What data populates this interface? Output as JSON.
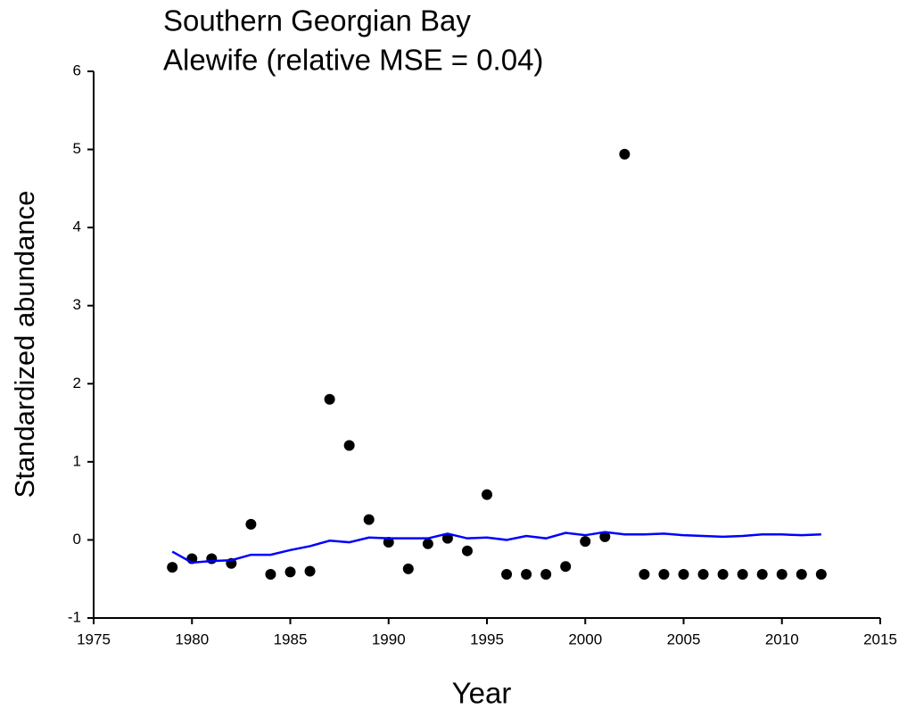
{
  "chart_data": {
    "type": "scatter",
    "title": [
      "Southern Georgian Bay",
      "Alewife (relative MSE = 0.04)"
    ],
    "x_label": "Year",
    "y_label": "Standardized abundance",
    "x": [
      1979,
      1980,
      1981,
      1982,
      1983,
      1984,
      1985,
      1986,
      1987,
      1988,
      1989,
      1990,
      1991,
      1992,
      1993,
      1994,
      1995,
      1996,
      1997,
      1998,
      1999,
      2000,
      2001,
      2002,
      2003,
      2004,
      2005,
      2006,
      2007,
      2008,
      2009,
      2010,
      2011,
      2012
    ],
    "series": [
      {
        "mode": "markers",
        "color": "#000000",
        "values": [
          -0.35,
          -0.24,
          -0.24,
          -0.3,
          0.2,
          -0.44,
          -0.41,
          -0.4,
          1.8,
          1.21,
          0.26,
          -0.03,
          -0.37,
          -0.05,
          0.02,
          -0.14,
          0.58,
          -0.44,
          -0.44,
          -0.44,
          -0.34,
          -0.02,
          0.04,
          4.94,
          -0.44,
          -0.44,
          -0.44,
          -0.44,
          -0.44,
          -0.44,
          -0.44,
          -0.44,
          -0.44,
          -0.44
        ]
      },
      {
        "mode": "line",
        "color": "#0000ff",
        "values": [
          -0.15,
          -0.29,
          -0.27,
          -0.26,
          -0.19,
          -0.19,
          -0.13,
          -0.08,
          -0.01,
          -0.03,
          0.03,
          0.02,
          0.02,
          0.02,
          0.08,
          0.02,
          0.03,
          0.0,
          0.05,
          0.02,
          0.09,
          0.06,
          0.1,
          0.07,
          0.07,
          0.08,
          0.06,
          0.05,
          0.04,
          0.05,
          0.07,
          0.07,
          0.06,
          0.07
        ]
      }
    ],
    "xlim": [
      1975,
      2015
    ],
    "xticks": [
      1975,
      1980,
      1985,
      1990,
      1995,
      2000,
      2005,
      2010,
      2015
    ],
    "ylim": [
      -1,
      6
    ],
    "yticks": [
      -1,
      0,
      1,
      2,
      3,
      4,
      5,
      6
    ],
    "grid": false
  }
}
